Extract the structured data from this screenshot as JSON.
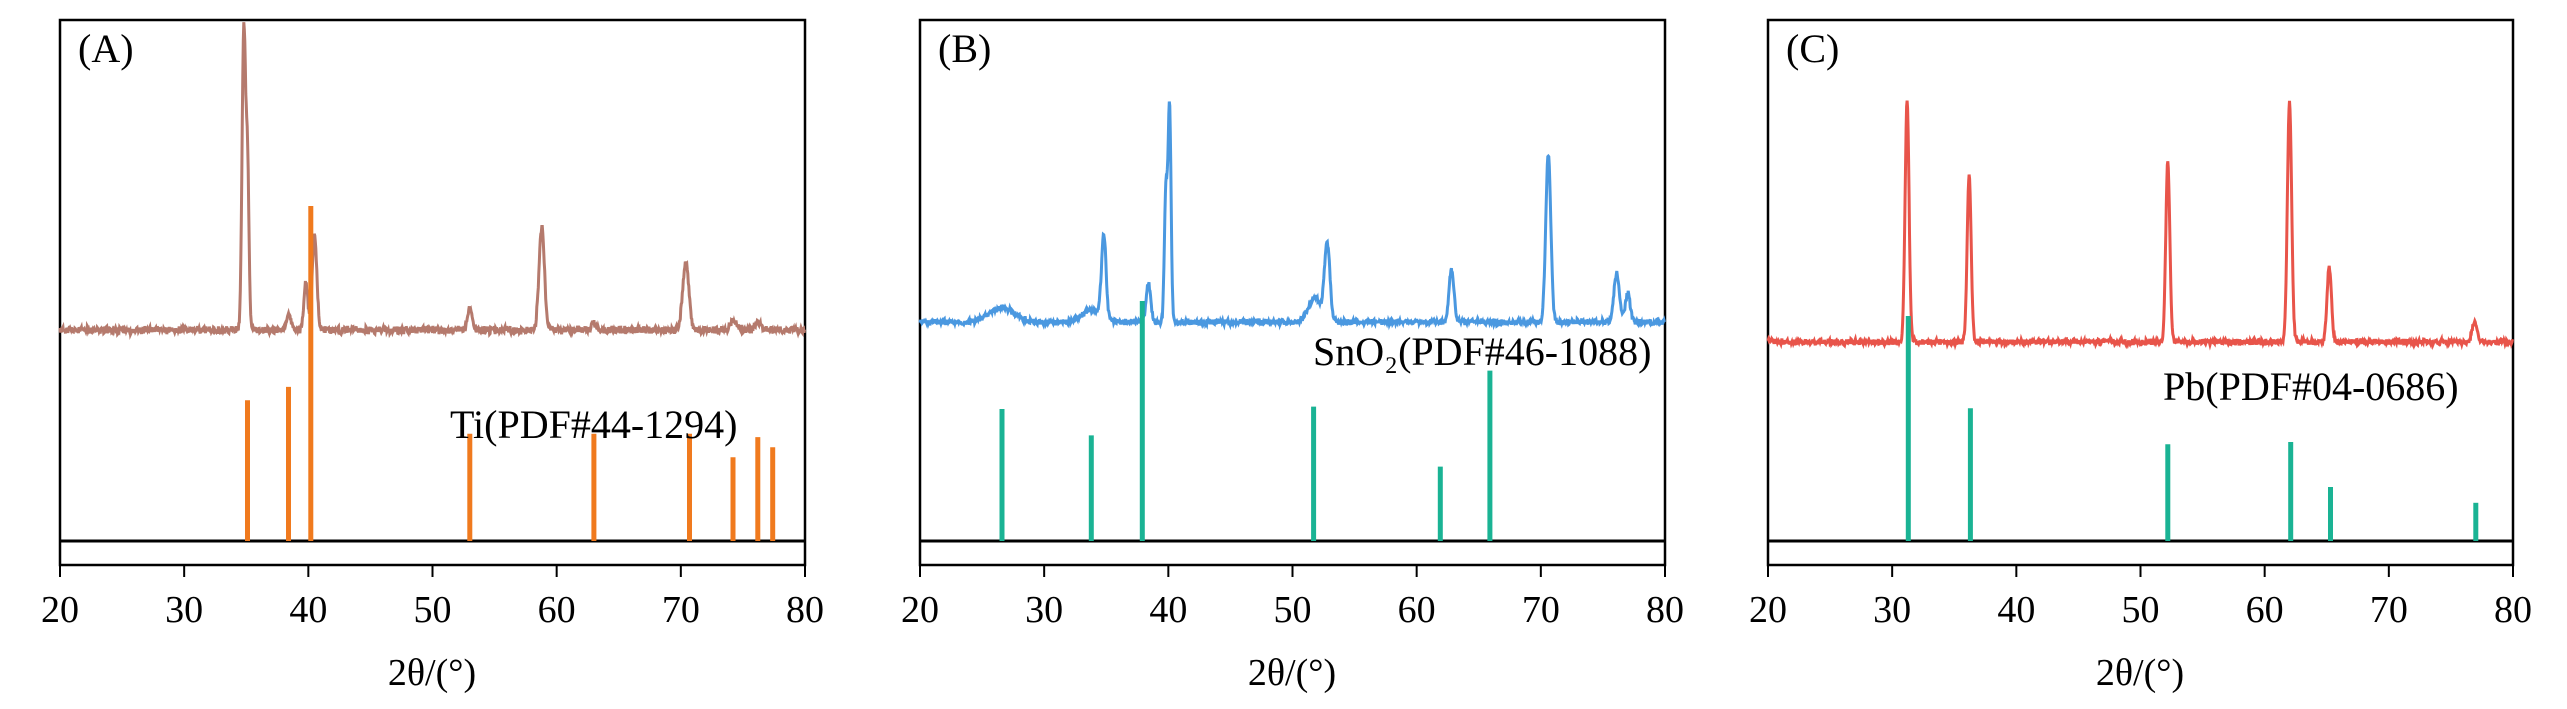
{
  "chart_data": [
    {
      "type": "line",
      "panel_label": "(A)",
      "xlabel": "2θ/(°)",
      "xlim": [
        20,
        80
      ],
      "xticks": [
        "20",
        "30",
        "40",
        "50",
        "60",
        "70",
        "80"
      ],
      "pattern_color": "#b57a6d",
      "pattern_baseline": 0.0,
      "pattern_peaks": [
        {
          "x": 34.8,
          "h": 1.0,
          "w": 0.14
        },
        {
          "x": 35.1,
          "h": 0.55,
          "w": 0.12
        },
        {
          "x": 38.4,
          "h": 0.05,
          "w": 0.2
        },
        {
          "x": 39.8,
          "h": 0.16,
          "w": 0.16
        },
        {
          "x": 40.5,
          "h": 0.32,
          "w": 0.18
        },
        {
          "x": 53.0,
          "h": 0.07,
          "w": 0.18
        },
        {
          "x": 58.8,
          "h": 0.34,
          "w": 0.22
        },
        {
          "x": 63.0,
          "h": 0.02,
          "w": 0.2
        },
        {
          "x": 70.4,
          "h": 0.22,
          "w": 0.25
        },
        {
          "x": 74.2,
          "h": 0.03,
          "w": 0.25
        },
        {
          "x": 76.2,
          "h": 0.03,
          "w": 0.25
        }
      ],
      "reference": {
        "label": "Ti(PDF#44-1294)",
        "color": "#f07a1e",
        "peaks": [
          {
            "x": 35.1,
            "intensity": 0.42
          },
          {
            "x": 38.4,
            "intensity": 0.46
          },
          {
            "x": 40.2,
            "intensity": 1.0
          },
          {
            "x": 53.0,
            "intensity": 0.32
          },
          {
            "x": 63.0,
            "intensity": 0.32
          },
          {
            "x": 70.7,
            "intensity": 0.32
          },
          {
            "x": 74.2,
            "intensity": 0.25
          },
          {
            "x": 76.2,
            "intensity": 0.31
          },
          {
            "x": 77.4,
            "intensity": 0.28
          }
        ]
      }
    },
    {
      "type": "line",
      "panel_label": "(B)",
      "xlabel": "2θ/(°)",
      "xlim": [
        20,
        80
      ],
      "xticks": [
        "20",
        "30",
        "40",
        "50",
        "60",
        "70",
        "80"
      ],
      "pattern_color": "#4a98e0",
      "pattern_baseline": 0.0,
      "pattern_peaks": [
        {
          "x": 26.6,
          "h": 0.06,
          "w": 1.0
        },
        {
          "x": 33.9,
          "h": 0.05,
          "w": 0.8
        },
        {
          "x": 34.8,
          "h": 0.34,
          "w": 0.18
        },
        {
          "x": 38.4,
          "h": 0.16,
          "w": 0.18
        },
        {
          "x": 39.8,
          "h": 0.55,
          "w": 0.12
        },
        {
          "x": 40.1,
          "h": 0.9,
          "w": 0.12
        },
        {
          "x": 51.8,
          "h": 0.1,
          "w": 0.5
        },
        {
          "x": 52.8,
          "h": 0.32,
          "w": 0.22
        },
        {
          "x": 62.8,
          "h": 0.22,
          "w": 0.2
        },
        {
          "x": 70.6,
          "h": 0.7,
          "w": 0.2
        },
        {
          "x": 76.1,
          "h": 0.2,
          "w": 0.22
        },
        {
          "x": 77.0,
          "h": 0.12,
          "w": 0.2
        }
      ],
      "reference": {
        "label": "SnO₂(PDF#46-1088)",
        "color": "#1ab394",
        "peaks": [
          {
            "x": 26.6,
            "intensity": 0.55
          },
          {
            "x": 33.8,
            "intensity": 0.44
          },
          {
            "x": 37.9,
            "intensity": 1.0
          },
          {
            "x": 51.7,
            "intensity": 0.56
          },
          {
            "x": 61.9,
            "intensity": 0.31
          },
          {
            "x": 65.9,
            "intensity": 0.71
          }
        ]
      }
    },
    {
      "type": "line",
      "panel_label": "(C)",
      "xlabel": "2θ/(°)",
      "xlim": [
        20,
        80
      ],
      "xticks": [
        "20",
        "30",
        "40",
        "50",
        "60",
        "70",
        "80"
      ],
      "pattern_color": "#e8544a",
      "pattern_baseline": 0.0,
      "pattern_peaks": [
        {
          "x": 31.2,
          "h": 1.0,
          "w": 0.16
        },
        {
          "x": 36.2,
          "h": 0.7,
          "w": 0.16
        },
        {
          "x": 52.2,
          "h": 0.75,
          "w": 0.16
        },
        {
          "x": 62.0,
          "h": 1.0,
          "w": 0.17
        },
        {
          "x": 65.2,
          "h": 0.31,
          "w": 0.18
        },
        {
          "x": 76.9,
          "h": 0.08,
          "w": 0.2
        }
      ],
      "reference": {
        "label": "Pb(PDF#04-0686)",
        "color": "#1ab394",
        "peaks": [
          {
            "x": 31.3,
            "intensity": 1.0
          },
          {
            "x": 36.3,
            "intensity": 0.59
          },
          {
            "x": 52.2,
            "intensity": 0.43
          },
          {
            "x": 62.1,
            "intensity": 0.44
          },
          {
            "x": 65.3,
            "intensity": 0.24
          },
          {
            "x": 77.0,
            "intensity": 0.17
          }
        ]
      }
    }
  ]
}
